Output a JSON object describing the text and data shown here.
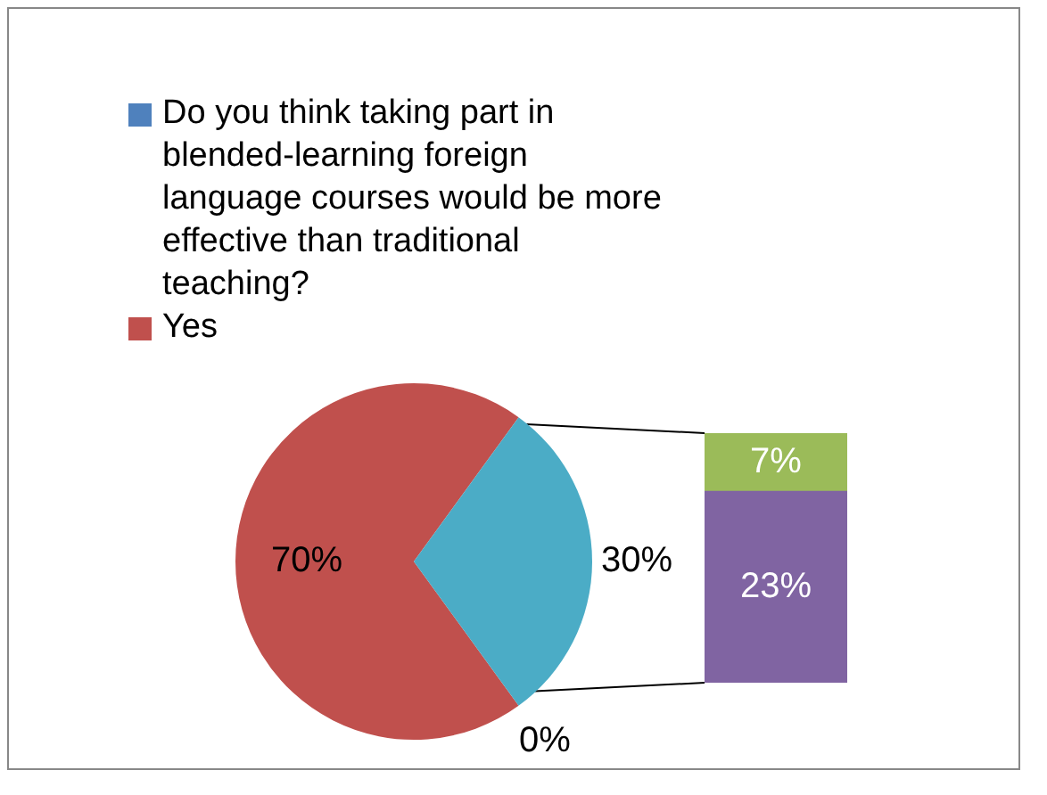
{
  "chart_data": [
    {
      "type": "pie",
      "categories": [
        "Do you think taking part in blended-learning foreign language courses would be more effective than traditional teaching?",
        "Yes",
        null
      ],
      "values": [
        0,
        70,
        30
      ],
      "colors": [
        "#4f81bd",
        "#c0504d",
        "#4bacc6"
      ],
      "value_labels": [
        "0%",
        "70%",
        "30%"
      ],
      "legend": "top"
    },
    {
      "type": "bar",
      "stacked": true,
      "categories": [
        null
      ],
      "series": [
        {
          "color": "#8064a2",
          "values": [
            23
          ],
          "value_labels": [
            "23%"
          ]
        },
        {
          "color": "#9bbb59",
          "values": [
            7
          ],
          "value_labels": [
            "7%"
          ]
        }
      ]
    }
  ]
}
